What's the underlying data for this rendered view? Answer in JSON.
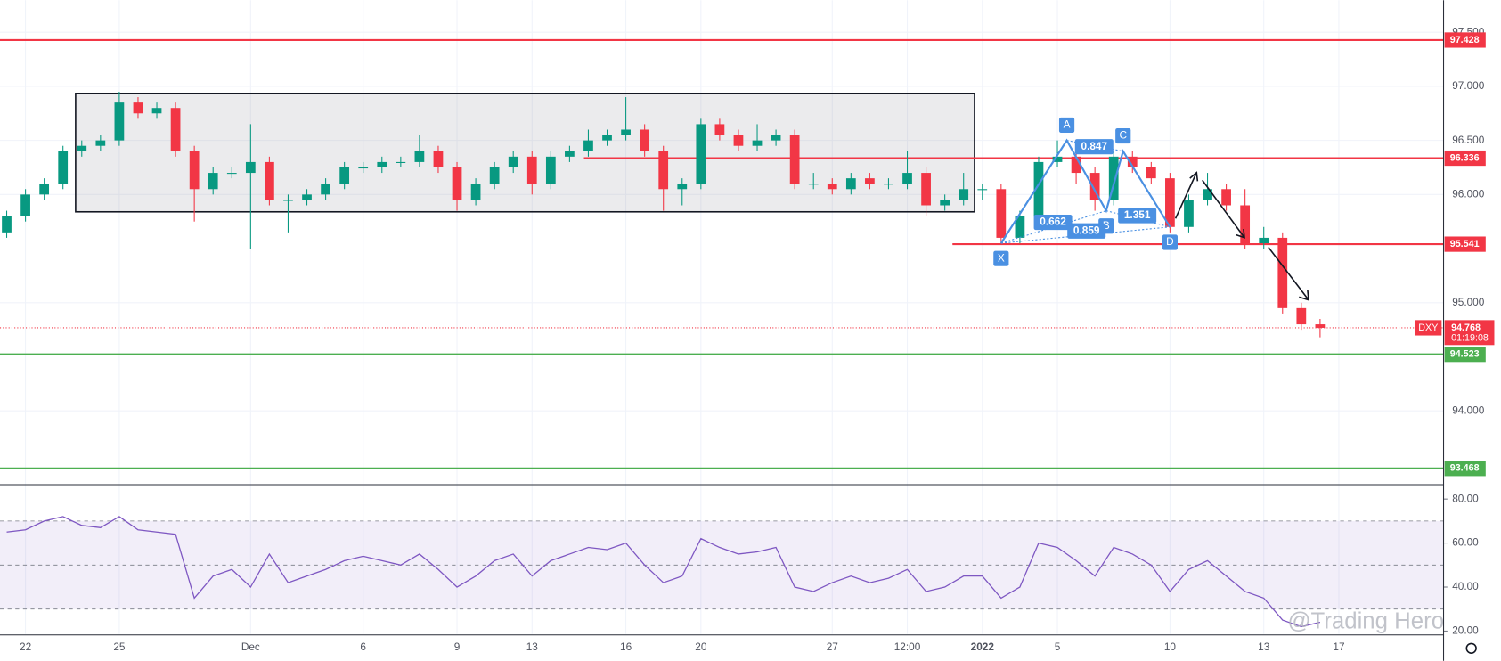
{
  "chart_data": {
    "type": "candlestick",
    "symbol": "DXY",
    "categories": [
      null,
      "22",
      null,
      null,
      null,
      null,
      "25",
      null,
      null,
      null,
      null,
      null,
      null,
      "Dec",
      null,
      null,
      null,
      null,
      null,
      "6",
      null,
      null,
      null,
      null,
      "9",
      null,
      null,
      null,
      "13",
      null,
      null,
      null,
      null,
      "16",
      null,
      null,
      null,
      "20",
      null,
      null,
      null,
      null,
      null,
      null,
      "27",
      null,
      null,
      null,
      "12:00",
      null,
      null,
      null,
      "2022",
      null,
      null,
      null,
      "5",
      null,
      null,
      null,
      null,
      null,
      "10",
      null,
      null,
      null,
      null,
      "13",
      null,
      null,
      null,
      "17"
    ],
    "open": [
      95.65,
      95.8,
      96.0,
      96.1,
      96.4,
      96.45,
      96.5,
      96.85,
      96.75,
      96.8,
      96.4,
      96.05,
      96.2,
      96.2,
      96.3,
      95.95,
      95.95,
      96.0,
      96.1,
      96.25,
      96.25,
      96.3,
      96.3,
      96.4,
      96.25,
      95.95,
      96.1,
      96.25,
      96.35,
      96.1,
      96.35,
      96.4,
      96.5,
      96.55,
      96.6,
      96.4,
      96.05,
      96.1,
      96.65,
      96.55,
      96.45,
      96.5,
      96.55,
      96.1,
      96.1,
      96.05,
      96.15,
      96.1,
      96.1,
      96.2,
      95.9,
      95.95,
      96.05,
      96.05,
      95.6,
      95.8,
      96.3,
      96.35,
      96.2,
      95.95,
      96.35,
      96.25,
      96.15,
      95.7,
      95.95,
      96.05,
      95.9,
      95.55,
      95.6,
      94.95,
      94.8,
      null
    ],
    "high": [
      95.85,
      96.05,
      96.15,
      96.45,
      96.5,
      96.55,
      96.95,
      96.9,
      96.85,
      96.85,
      96.45,
      96.25,
      96.25,
      96.65,
      96.35,
      96.0,
      96.05,
      96.15,
      96.3,
      96.3,
      96.35,
      96.35,
      96.55,
      96.45,
      96.3,
      96.15,
      96.3,
      96.4,
      96.4,
      96.4,
      96.45,
      96.6,
      96.6,
      96.9,
      96.65,
      96.45,
      96.15,
      96.7,
      96.7,
      96.6,
      96.65,
      96.6,
      96.6,
      96.2,
      96.15,
      96.2,
      96.2,
      96.15,
      96.4,
      96.25,
      96.0,
      96.2,
      96.1,
      96.1,
      95.85,
      96.35,
      96.5,
      96.4,
      96.25,
      96.4,
      96.4,
      96.3,
      96.2,
      96.0,
      96.2,
      96.1,
      96.05,
      95.7,
      95.65,
      95.0,
      94.85,
      null
    ],
    "low": [
      95.6,
      95.75,
      95.95,
      96.05,
      96.35,
      96.4,
      96.45,
      96.7,
      96.7,
      96.35,
      95.75,
      96.0,
      96.15,
      95.5,
      95.9,
      95.65,
      95.9,
      95.95,
      96.05,
      96.2,
      96.2,
      96.25,
      96.25,
      96.2,
      95.85,
      95.9,
      96.05,
      96.2,
      96.0,
      96.05,
      96.3,
      96.35,
      96.45,
      96.5,
      96.35,
      95.85,
      95.9,
      96.05,
      96.5,
      96.4,
      96.4,
      96.45,
      96.05,
      96.05,
      96.0,
      96.0,
      96.05,
      96.05,
      96.05,
      95.8,
      95.85,
      95.9,
      95.95,
      95.55,
      95.55,
      95.75,
      96.25,
      96.1,
      95.85,
      95.9,
      96.2,
      96.1,
      95.65,
      95.65,
      95.9,
      95.85,
      95.5,
      95.5,
      94.9,
      94.75,
      94.68,
      null
    ],
    "close": [
      95.8,
      96.0,
      96.1,
      96.4,
      96.45,
      96.5,
      96.85,
      96.75,
      96.8,
      96.4,
      96.05,
      96.2,
      96.2,
      96.3,
      95.95,
      95.95,
      96.0,
      96.1,
      96.25,
      96.25,
      96.3,
      96.3,
      96.4,
      96.25,
      95.95,
      96.1,
      96.25,
      96.35,
      96.1,
      96.35,
      96.4,
      96.5,
      96.55,
      96.6,
      96.4,
      96.05,
      96.1,
      96.65,
      96.55,
      96.45,
      96.5,
      96.55,
      96.1,
      96.1,
      96.05,
      96.15,
      96.1,
      96.1,
      96.2,
      95.9,
      95.95,
      96.05,
      96.05,
      95.6,
      95.8,
      96.3,
      96.35,
      96.2,
      95.95,
      96.35,
      96.25,
      96.15,
      95.7,
      95.95,
      96.05,
      95.9,
      95.55,
      95.6,
      94.95,
      94.8,
      94.768,
      null
    ],
    "up_color": "#089981",
    "down_color": "#f23645",
    "ylim": [
      93.327,
      97.796
    ],
    "yticks": [
      {
        "value": 97.5,
        "label": "97.500"
      },
      {
        "value": 97,
        "label": "97.000"
      },
      {
        "value": 96.5,
        "label": "96.500"
      },
      {
        "value": 96,
        "label": "96.000"
      },
      {
        "value": 95,
        "label": "95.000"
      },
      {
        "value": 94,
        "label": "94.000"
      }
    ],
    "grid": true,
    "levels": [
      {
        "value": 97.428,
        "color": "#f23645"
      },
      {
        "value": 96.336,
        "color": "#f23645"
      },
      {
        "value": 95.541,
        "color": "#f23645"
      },
      {
        "value": 94.523,
        "color": "#4caf50"
      },
      {
        "value": 93.468,
        "color": "#4caf50"
      }
    ],
    "last": {
      "value": 94.768,
      "countdown": "01:19:08"
    },
    "range_box": {
      "ylim": [
        95.84,
        96.935
      ]
    },
    "pattern": {
      "labels": [
        "X",
        "A",
        "B",
        "C",
        "D"
      ],
      "values": [
        95.55,
        96.5,
        95.85,
        96.4,
        95.7
      ],
      "ratios": [
        0.847,
        0.662,
        0.859,
        1.351
      ],
      "color": "#4a90e2"
    },
    "rsi": {
      "values": [
        65,
        66,
        70,
        72,
        68,
        67,
        72,
        66,
        65,
        64,
        35,
        45,
        48,
        40,
        55,
        42,
        45,
        48,
        52,
        54,
        52,
        50,
        55,
        48,
        40,
        45,
        52,
        55,
        45,
        52,
        55,
        58,
        57,
        60,
        50,
        42,
        45,
        62,
        58,
        55,
        56,
        58,
        40,
        38,
        42,
        45,
        42,
        44,
        48,
        38,
        40,
        45,
        45,
        35,
        40,
        60,
        58,
        52,
        45,
        58,
        55,
        50,
        38,
        48,
        52,
        45,
        38,
        35,
        25,
        22,
        24,
        null
      ],
      "color": "#7e57c2",
      "ylim": [
        18.7,
        86.1
      ],
      "yticks": [
        {
          "value": 80,
          "label": "80.00"
        },
        {
          "value": 60,
          "label": "60.00"
        },
        {
          "value": 40,
          "label": "40.00"
        },
        {
          "value": 20,
          "label": "20.00"
        }
      ],
      "band": [
        30,
        70
      ],
      "mid": 50
    },
    "watermark": "@Trading Hero"
  }
}
